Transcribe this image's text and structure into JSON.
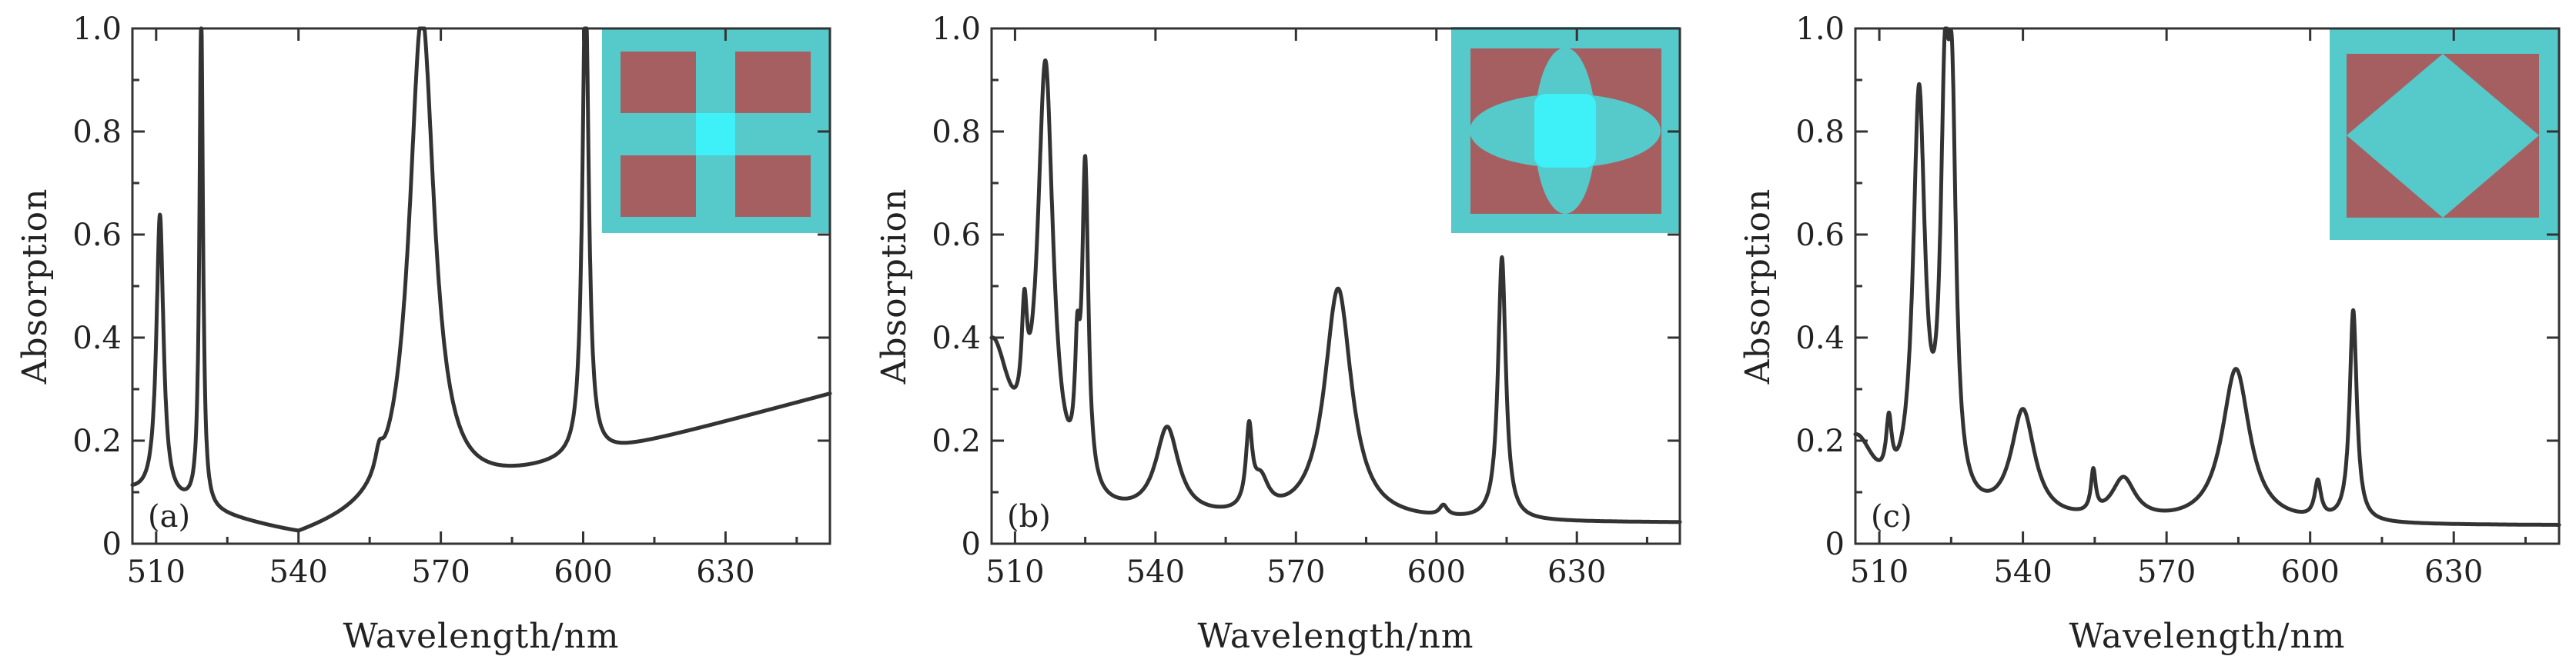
{
  "figure": {
    "background": "#ffffff"
  },
  "chart_data": [
    {
      "type": "line",
      "panel_label": "(a)",
      "xlabel": "Wavelength/nm",
      "ylabel": "Absorption",
      "xlim": [
        505,
        652
      ],
      "ylim": [
        0,
        1.0
      ],
      "xticks": [
        510,
        540,
        570,
        600,
        630
      ],
      "xtick_labels": [
        "510",
        "540",
        "570",
        "600",
        "630"
      ],
      "yticks": [
        0,
        0.2,
        0.4,
        0.6,
        0.8,
        1.0
      ],
      "ytick_labels": [
        "0",
        "0.2",
        "0.4",
        "0.6",
        "0.8",
        "1.0"
      ],
      "inset": "square-cross",
      "inset_colors": {
        "background": "#56c9cb",
        "metal": "#a65f61",
        "highlight": "#3ef0f7"
      },
      "baseline": {
        "base": 0.01,
        "slope": 0.0025,
        "x0": 540
      },
      "peaks": [
        {
          "x": 510.8,
          "h": 0.55,
          "w": 0.9
        },
        {
          "x": 519.5,
          "h": 0.96,
          "w": 0.45
        },
        {
          "x": 557.0,
          "h": 0.04,
          "w": 1.0
        },
        {
          "x": 566.0,
          "h": 0.95,
          "w": 3.2
        },
        {
          "x": 600.5,
          "h": 0.93,
          "w": 0.8
        }
      ],
      "series": [
        {
          "name": "Absorption"
        }
      ]
    },
    {
      "type": "line",
      "panel_label": "(b)",
      "xlabel": "Wavelength/nm",
      "ylabel": "Absorption",
      "xlim": [
        505,
        652
      ],
      "ylim": [
        0,
        1.0
      ],
      "xticks": [
        510,
        540,
        570,
        600,
        630
      ],
      "xtick_labels": [
        "510",
        "540",
        "570",
        "600",
        "630"
      ],
      "yticks": [
        0,
        0.2,
        0.4,
        0.6,
        0.8,
        1.0
      ],
      "ytick_labels": [
        "0",
        "0.2",
        "0.4",
        "0.6",
        "0.8",
        "1.0"
      ],
      "inset": "cross-ellipses",
      "inset_colors": {
        "background": "#56c9cb",
        "metal": "#a65f61",
        "highlight": "#3ef0f7"
      },
      "baseline": {
        "base": 0.04,
        "slope": 0.0,
        "x0": 0
      },
      "peaks": [
        {
          "x": 505.0,
          "h": 0.33,
          "w": 5.0
        },
        {
          "x": 512.0,
          "h": 0.2,
          "w": 0.7
        },
        {
          "x": 516.5,
          "h": 0.83,
          "w": 2.0
        },
        {
          "x": 523.3,
          "h": 0.2,
          "w": 0.6
        },
        {
          "x": 525.0,
          "h": 0.62,
          "w": 0.8
        },
        {
          "x": 542.5,
          "h": 0.17,
          "w": 3.0
        },
        {
          "x": 560.0,
          "h": 0.15,
          "w": 0.8
        },
        {
          "x": 562.5,
          "h": 0.06,
          "w": 2.0
        },
        {
          "x": 579.0,
          "h": 0.45,
          "w": 3.5
        },
        {
          "x": 601.5,
          "h": 0.02,
          "w": 1.0
        },
        {
          "x": 614.0,
          "h": 0.51,
          "w": 1.0
        }
      ],
      "series": [
        {
          "name": "Absorption"
        }
      ]
    },
    {
      "type": "line",
      "panel_label": "(c)",
      "xlabel": "Wavelength/nm",
      "ylabel": "Absorption",
      "xlim": [
        505,
        652
      ],
      "ylim": [
        0,
        1.0
      ],
      "xticks": [
        510,
        540,
        570,
        600,
        630
      ],
      "xtick_labels": [
        "510",
        "540",
        "570",
        "600",
        "630"
      ],
      "yticks": [
        0,
        0.2,
        0.4,
        0.6,
        0.8,
        1.0
      ],
      "ytick_labels": [
        "0",
        "0.2",
        "0.4",
        "0.6",
        "0.8",
        "1.0"
      ],
      "inset": "diamond",
      "inset_colors": {
        "background": "#56c9cb",
        "metal": "#a65f61",
        "highlight": "#3ef0f7"
      },
      "baseline": {
        "base": 0.035,
        "slope": 0.0,
        "x0": 0
      },
      "peaks": [
        {
          "x": 505.0,
          "h": 0.16,
          "w": 5.0
        },
        {
          "x": 512.0,
          "h": 0.11,
          "w": 0.7
        },
        {
          "x": 518.3,
          "h": 0.79,
          "w": 1.5
        },
        {
          "x": 523.7,
          "h": 0.69,
          "w": 1.1
        },
        {
          "x": 525.2,
          "h": 0.64,
          "w": 1.0
        },
        {
          "x": 540.0,
          "h": 0.21,
          "w": 3.0
        },
        {
          "x": 554.7,
          "h": 0.08,
          "w": 0.6
        },
        {
          "x": 561.0,
          "h": 0.08,
          "w": 3.0
        },
        {
          "x": 584.5,
          "h": 0.3,
          "w": 3.5
        },
        {
          "x": 601.6,
          "h": 0.07,
          "w": 0.8
        },
        {
          "x": 609.0,
          "h": 0.41,
          "w": 0.9
        }
      ],
      "series": [
        {
          "name": "Absorption"
        }
      ]
    }
  ]
}
